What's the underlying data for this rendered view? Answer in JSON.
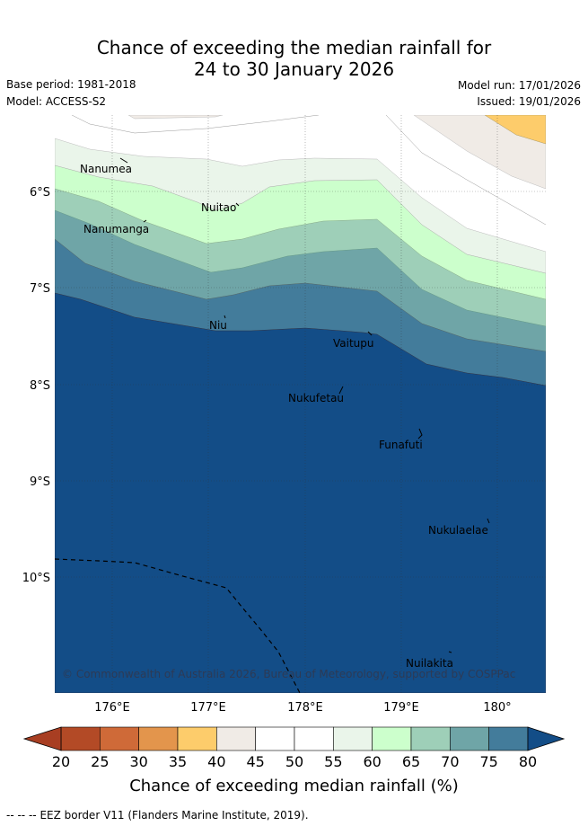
{
  "title": {
    "line1": "Chance of exceeding the median rainfall for",
    "line2": "24 to 30 January 2026"
  },
  "meta": {
    "base_period": "Base period: 1981-2018",
    "model": "Model: ACCESS-S2",
    "model_run": "Model run: 17/01/2026",
    "issued": "Issued: 19/01/2026"
  },
  "map": {
    "lon_range": [
      175.5,
      180.5
    ],
    "lat_range": [
      -11.2,
      -5.35
    ],
    "lat_labels": [
      "6°S",
      "7°S",
      "8°S",
      "9°S",
      "10°S"
    ],
    "lon_labels": [
      "176°E",
      "177°E",
      "178°E",
      "179°E",
      "180°"
    ],
    "places": [
      {
        "name": "Nanumea"
      },
      {
        "name": "Nuitao"
      },
      {
        "name": "Nanumanga"
      },
      {
        "name": "Niu"
      },
      {
        "name": "Vaitupu"
      },
      {
        "name": "Nukufetau"
      },
      {
        "name": "Funafuti"
      },
      {
        "name": "Nukulaelae"
      },
      {
        "name": "Nuilakita"
      }
    ],
    "credit": "© Commonwealth of Australia 2026, Bureau of Meteorology, supported by COSPPac"
  },
  "colorbar": {
    "ticks": [
      "20",
      "25",
      "30",
      "35",
      "40",
      "45",
      "50",
      "55",
      "60",
      "65",
      "70",
      "75",
      "80"
    ],
    "colors": [
      "#b34a26",
      "#cf6a38",
      "#e3954c",
      "#fdcc6b",
      "#f0ebe6",
      "#ffffff",
      "#ffffff",
      "#eaf5ea",
      "#ccffcc",
      "#9ecfb8",
      "#6fa5a7",
      "#437c9b"
    ],
    "under_color": "#a83e22",
    "over_color": "#134d87",
    "label": "Chance of exceeding median rainfall (%)"
  },
  "legend": {
    "eez_symbol": "-- -- --",
    "eez": "EEZ border V11 (Flanders Marine Institute, 2019)."
  }
}
